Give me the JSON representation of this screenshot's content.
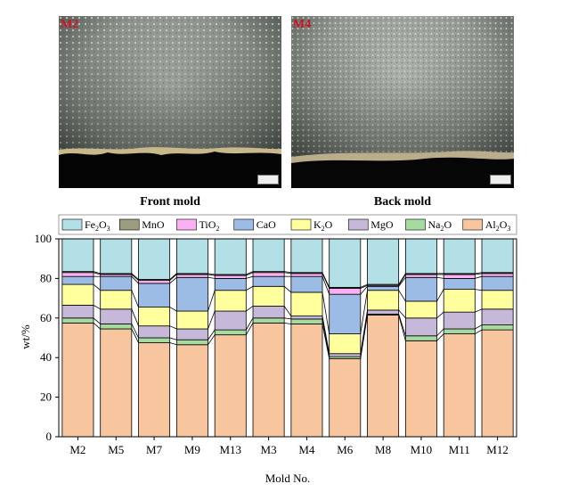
{
  "micrographs": {
    "left": {
      "label": "M2",
      "caption": "Front mold"
    },
    "right": {
      "label": "M4",
      "caption": "Back mold"
    }
  },
  "chart_data": {
    "type": "bar",
    "stacked": true,
    "categories": [
      "M2",
      "M5",
      "M7",
      "M9",
      "M13",
      "M3",
      "M4",
      "M6",
      "M8",
      "M10",
      "M11",
      "M12"
    ],
    "series": [
      {
        "name": "Al2O3",
        "display": [
          "Al",
          "2",
          "O",
          "3"
        ],
        "color": "#f7c59e",
        "values": [
          57.5,
          54.5,
          47.5,
          46.5,
          51.5,
          57.5,
          57,
          39.5,
          61.5,
          48.5,
          52,
          54
        ]
      },
      {
        "name": "Na2O",
        "display": [
          "Na",
          "2",
          "O"
        ],
        "color": "#a6dba0",
        "values": [
          2.5,
          2.5,
          2.5,
          2.5,
          2.5,
          2.5,
          2.5,
          1,
          0.5,
          2.5,
          2.5,
          2.5
        ]
      },
      {
        "name": "MgO",
        "display": [
          "MgO"
        ],
        "color": "#c6b8d9",
        "values": [
          6.5,
          7.5,
          6,
          5.5,
          9.5,
          6,
          1.5,
          1.5,
          2,
          9,
          8.5,
          8
        ]
      },
      {
        "name": "K2O",
        "display": [
          "K",
          "2",
          "O"
        ],
        "color": "#ffff9e",
        "values": [
          10.5,
          9.5,
          9.5,
          9,
          10.5,
          10,
          12,
          10,
          10,
          8.5,
          11.5,
          9.5
        ]
      },
      {
        "name": "CaO",
        "display": [
          "CaO"
        ],
        "color": "#9dbce5",
        "values": [
          4,
          7,
          12,
          17,
          6,
          5,
          8,
          20,
          2,
          12,
          5.5,
          7
        ]
      },
      {
        "name": "TiO2",
        "display": [
          "TiO",
          "2"
        ],
        "color": "#fbb0f3",
        "values": [
          2,
          1,
          1.5,
          1.5,
          1.5,
          2,
          1.5,
          3,
          0.5,
          1.5,
          2,
          1.5
        ]
      },
      {
        "name": "MnO",
        "display": [
          "MnO"
        ],
        "color": "#9c9c7e",
        "values": [
          0.5,
          0.5,
          0.5,
          0.5,
          0.5,
          0.5,
          0.5,
          0.5,
          0.5,
          0.5,
          0.5,
          0.5
        ]
      },
      {
        "name": "Fe2O3",
        "display": [
          "Fe",
          "2",
          "O",
          "3"
        ],
        "color": "#b3e0e6",
        "values": [
          16.5,
          17.5,
          20.5,
          17.5,
          18,
          16.5,
          17,
          24.5,
          23,
          17.5,
          17.5,
          17
        ]
      }
    ],
    "legend_order": [
      "Fe2O3",
      "MnO",
      "TiO2",
      "CaO",
      "K2O",
      "MgO",
      "Na2O",
      "Al2O3"
    ],
    "xlabel": "Mold No.",
    "ylabel": "wt/%",
    "ylim": [
      0,
      100
    ],
    "yticks": [
      0,
      20,
      40,
      60,
      80,
      100
    ],
    "legend_position": "top"
  }
}
